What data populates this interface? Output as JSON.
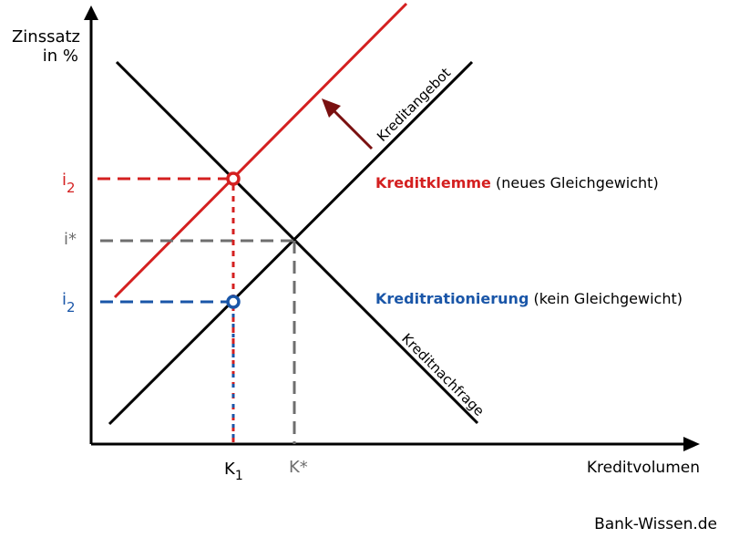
{
  "axes": {
    "y_label_line1": "Zinssatz",
    "y_label_line2": "in %",
    "x_label": "Kreditvolumen"
  },
  "curves": {
    "supply_label": "Kreditangebot",
    "demand_label": "Kreditnachfrage"
  },
  "ticks": {
    "i2_main": "i",
    "i2_sub": "2",
    "i_star": "i*",
    "k1_main": "K",
    "k1_sub": "1",
    "k_star": "K*"
  },
  "annotations": {
    "klemme_bold": "Kreditklemme",
    "klemme_rest": " (neues Gleichgewicht)",
    "rationierung_bold": "Kreditrationierung",
    "rationierung_rest": " (kein Gleichgewicht)"
  },
  "footer": {
    "source": "Bank-Wissen.de"
  },
  "colors": {
    "red": "#d42020",
    "blue": "#1a56a8",
    "gray": "#6e6e6e",
    "arrow": "#7a1010",
    "black": "#000000"
  }
}
